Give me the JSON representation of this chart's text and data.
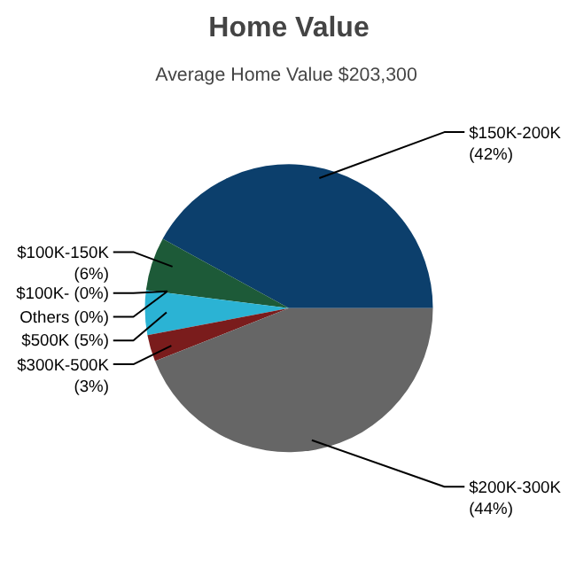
{
  "chart_data": {
    "type": "pie",
    "title": "Home Value",
    "subtitle": "Average Home Value  $203,300",
    "categories": [
      "$150K-200K",
      "$100K-150K",
      "$100K-",
      "Others",
      "$500K",
      "$300K-500K",
      "$200K-300K"
    ],
    "values": [
      42,
      6,
      0,
      0,
      5,
      3,
      44
    ],
    "colors": [
      "#0c3f6c",
      "#1d5a38",
      "#4a7a9a",
      "#8a8a8a",
      "#2bb3d4",
      "#7a1c1c",
      "#666666"
    ],
    "value_labels": [
      "(42%)",
      "(6%)",
      "(0%)",
      "(0%)",
      "(5%)",
      "(3%)",
      "(44%)"
    ]
  }
}
